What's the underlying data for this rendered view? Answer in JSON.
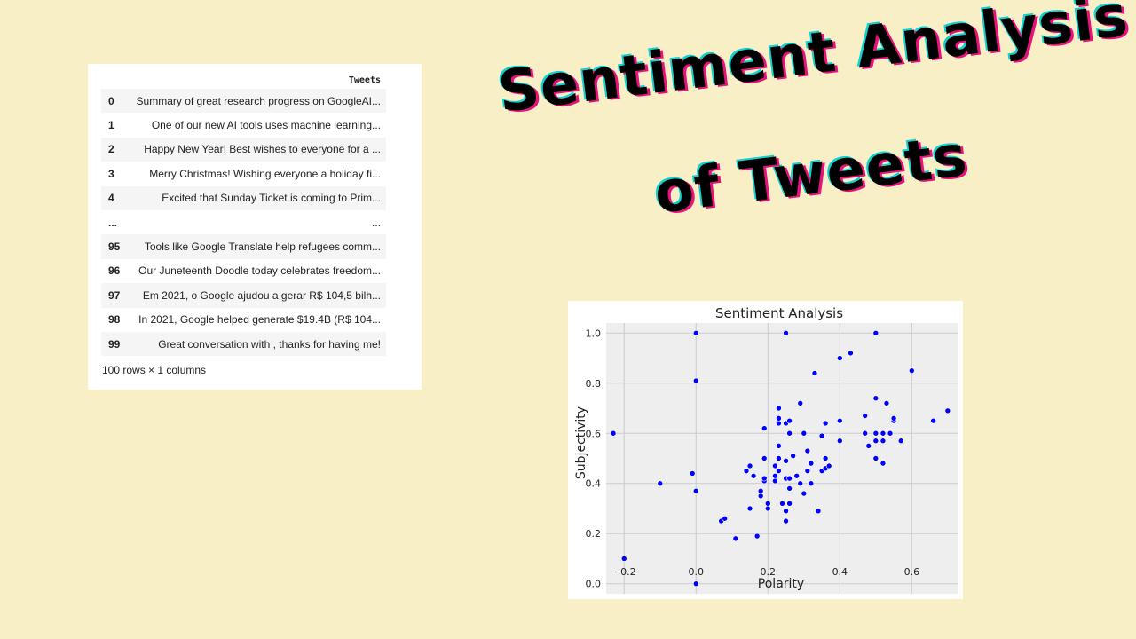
{
  "dataframe": {
    "column_header": "Tweets",
    "rows": [
      {
        "index": "0",
        "text": "Summary of great research progress on GoogleAI..."
      },
      {
        "index": "1",
        "text": "One of our new AI tools uses machine learning..."
      },
      {
        "index": "2",
        "text": "Happy New Year! Best wishes to everyone for a ..."
      },
      {
        "index": "3",
        "text": "Merry Christmas! Wishing everyone a holiday fi..."
      },
      {
        "index": "4",
        "text": "Excited that Sunday Ticket is coming to Prim..."
      },
      {
        "index": "...",
        "text": "..."
      },
      {
        "index": "95",
        "text": "Tools like Google Translate help refugees comm..."
      },
      {
        "index": "96",
        "text": "Our Juneteenth Doodle today celebrates freedom..."
      },
      {
        "index": "97",
        "text": "Em 2021, o Google ajudou a gerar R$ 104,5 bilh..."
      },
      {
        "index": "98",
        "text": "In 2021, Google helped generate $19.4B (R$ 104..."
      },
      {
        "index": "99",
        "text": "Great conversation with , thanks for having me!"
      }
    ],
    "shape_text": "100 rows × 1 columns"
  },
  "headline": {
    "line1": "Sentiment Analysis",
    "line2": "of Tweets"
  },
  "colors": {
    "background": "#f9efc6",
    "point": "#0000ff",
    "plot_bg": "#eeeeee",
    "grid": "#cbcbcb",
    "shadow_pink": "#e8127c",
    "shadow_cyan": "#13d1d1"
  },
  "chart_data": {
    "type": "scatter",
    "title": "Sentiment Analysis",
    "xlabel": "Polarity",
    "ylabel": "Subjectivity",
    "xlim": [
      -0.25,
      0.73
    ],
    "ylim": [
      -0.04,
      1.04
    ],
    "xticks": [
      -0.2,
      0.0,
      0.2,
      0.4,
      0.6
    ],
    "xtick_labels": [
      "−0.2",
      "0.0",
      "0.2",
      "0.4",
      "0.6"
    ],
    "yticks": [
      0.0,
      0.2,
      0.4,
      0.6,
      0.8,
      1.0
    ],
    "ytick_labels": [
      "0.0",
      "0.2",
      "0.4",
      "0.6",
      "0.8",
      "1.0"
    ],
    "grid": true,
    "points": [
      {
        "x": -0.23,
        "y": 0.6
      },
      {
        "x": -0.2,
        "y": 0.1
      },
      {
        "x": -0.1,
        "y": 0.4
      },
      {
        "x": 0.0,
        "y": 1.0
      },
      {
        "x": 0.0,
        "y": 0.81
      },
      {
        "x": -0.01,
        "y": 0.44
      },
      {
        "x": 0.0,
        "y": 0.37
      },
      {
        "x": 0.0,
        "y": 0.0
      },
      {
        "x": 0.07,
        "y": 0.25
      },
      {
        "x": 0.08,
        "y": 0.26
      },
      {
        "x": 0.11,
        "y": 0.18
      },
      {
        "x": 0.17,
        "y": 0.19
      },
      {
        "x": 0.15,
        "y": 0.3
      },
      {
        "x": 0.18,
        "y": 0.35
      },
      {
        "x": 0.18,
        "y": 0.37
      },
      {
        "x": 0.19,
        "y": 0.41
      },
      {
        "x": 0.19,
        "y": 0.42
      },
      {
        "x": 0.16,
        "y": 0.43
      },
      {
        "x": 0.14,
        "y": 0.45
      },
      {
        "x": 0.15,
        "y": 0.47
      },
      {
        "x": 0.19,
        "y": 0.5
      },
      {
        "x": 0.19,
        "y": 0.62
      },
      {
        "x": 0.2,
        "y": 0.3
      },
      {
        "x": 0.2,
        "y": 0.32
      },
      {
        "x": 0.22,
        "y": 0.41
      },
      {
        "x": 0.22,
        "y": 0.43
      },
      {
        "x": 0.23,
        "y": 0.45
      },
      {
        "x": 0.22,
        "y": 0.47
      },
      {
        "x": 0.23,
        "y": 0.5
      },
      {
        "x": 0.23,
        "y": 0.55
      },
      {
        "x": 0.23,
        "y": 0.64
      },
      {
        "x": 0.23,
        "y": 0.66
      },
      {
        "x": 0.23,
        "y": 0.7
      },
      {
        "x": 0.24,
        "y": 0.32
      },
      {
        "x": 0.25,
        "y": 0.25
      },
      {
        "x": 0.25,
        "y": 0.29
      },
      {
        "x": 0.26,
        "y": 0.32
      },
      {
        "x": 0.25,
        "y": 0.42
      },
      {
        "x": 0.25,
        "y": 0.49
      },
      {
        "x": 0.26,
        "y": 0.38
      },
      {
        "x": 0.26,
        "y": 0.42
      },
      {
        "x": 0.27,
        "y": 0.51
      },
      {
        "x": 0.26,
        "y": 0.6
      },
      {
        "x": 0.25,
        "y": 0.64
      },
      {
        "x": 0.26,
        "y": 0.65
      },
      {
        "x": 0.25,
        "y": 1.0
      },
      {
        "x": 0.28,
        "y": 0.43
      },
      {
        "x": 0.29,
        "y": 0.4
      },
      {
        "x": 0.3,
        "y": 0.36
      },
      {
        "x": 0.31,
        "y": 0.45
      },
      {
        "x": 0.31,
        "y": 0.53
      },
      {
        "x": 0.3,
        "y": 0.6
      },
      {
        "x": 0.29,
        "y": 0.72
      },
      {
        "x": 0.32,
        "y": 0.4
      },
      {
        "x": 0.32,
        "y": 0.48
      },
      {
        "x": 0.34,
        "y": 0.29
      },
      {
        "x": 0.35,
        "y": 0.45
      },
      {
        "x": 0.36,
        "y": 0.46
      },
      {
        "x": 0.36,
        "y": 0.5
      },
      {
        "x": 0.35,
        "y": 0.59
      },
      {
        "x": 0.36,
        "y": 0.64
      },
      {
        "x": 0.33,
        "y": 0.84
      },
      {
        "x": 0.37,
        "y": 0.47
      },
      {
        "x": 0.4,
        "y": 0.57
      },
      {
        "x": 0.4,
        "y": 0.65
      },
      {
        "x": 0.4,
        "y": 0.9
      },
      {
        "x": 0.43,
        "y": 0.92
      },
      {
        "x": 0.47,
        "y": 0.67
      },
      {
        "x": 0.47,
        "y": 0.6
      },
      {
        "x": 0.48,
        "y": 0.55
      },
      {
        "x": 0.5,
        "y": 0.5
      },
      {
        "x": 0.5,
        "y": 0.57
      },
      {
        "x": 0.5,
        "y": 0.6
      },
      {
        "x": 0.5,
        "y": 0.74
      },
      {
        "x": 0.5,
        "y": 1.0
      },
      {
        "x": 0.52,
        "y": 0.48
      },
      {
        "x": 0.52,
        "y": 0.57
      },
      {
        "x": 0.52,
        "y": 0.6
      },
      {
        "x": 0.53,
        "y": 0.72
      },
      {
        "x": 0.54,
        "y": 0.6
      },
      {
        "x": 0.55,
        "y": 0.65
      },
      {
        "x": 0.55,
        "y": 0.66
      },
      {
        "x": 0.57,
        "y": 0.57
      },
      {
        "x": 0.6,
        "y": 0.85
      },
      {
        "x": 0.66,
        "y": 0.65
      },
      {
        "x": 0.7,
        "y": 0.69
      }
    ]
  }
}
